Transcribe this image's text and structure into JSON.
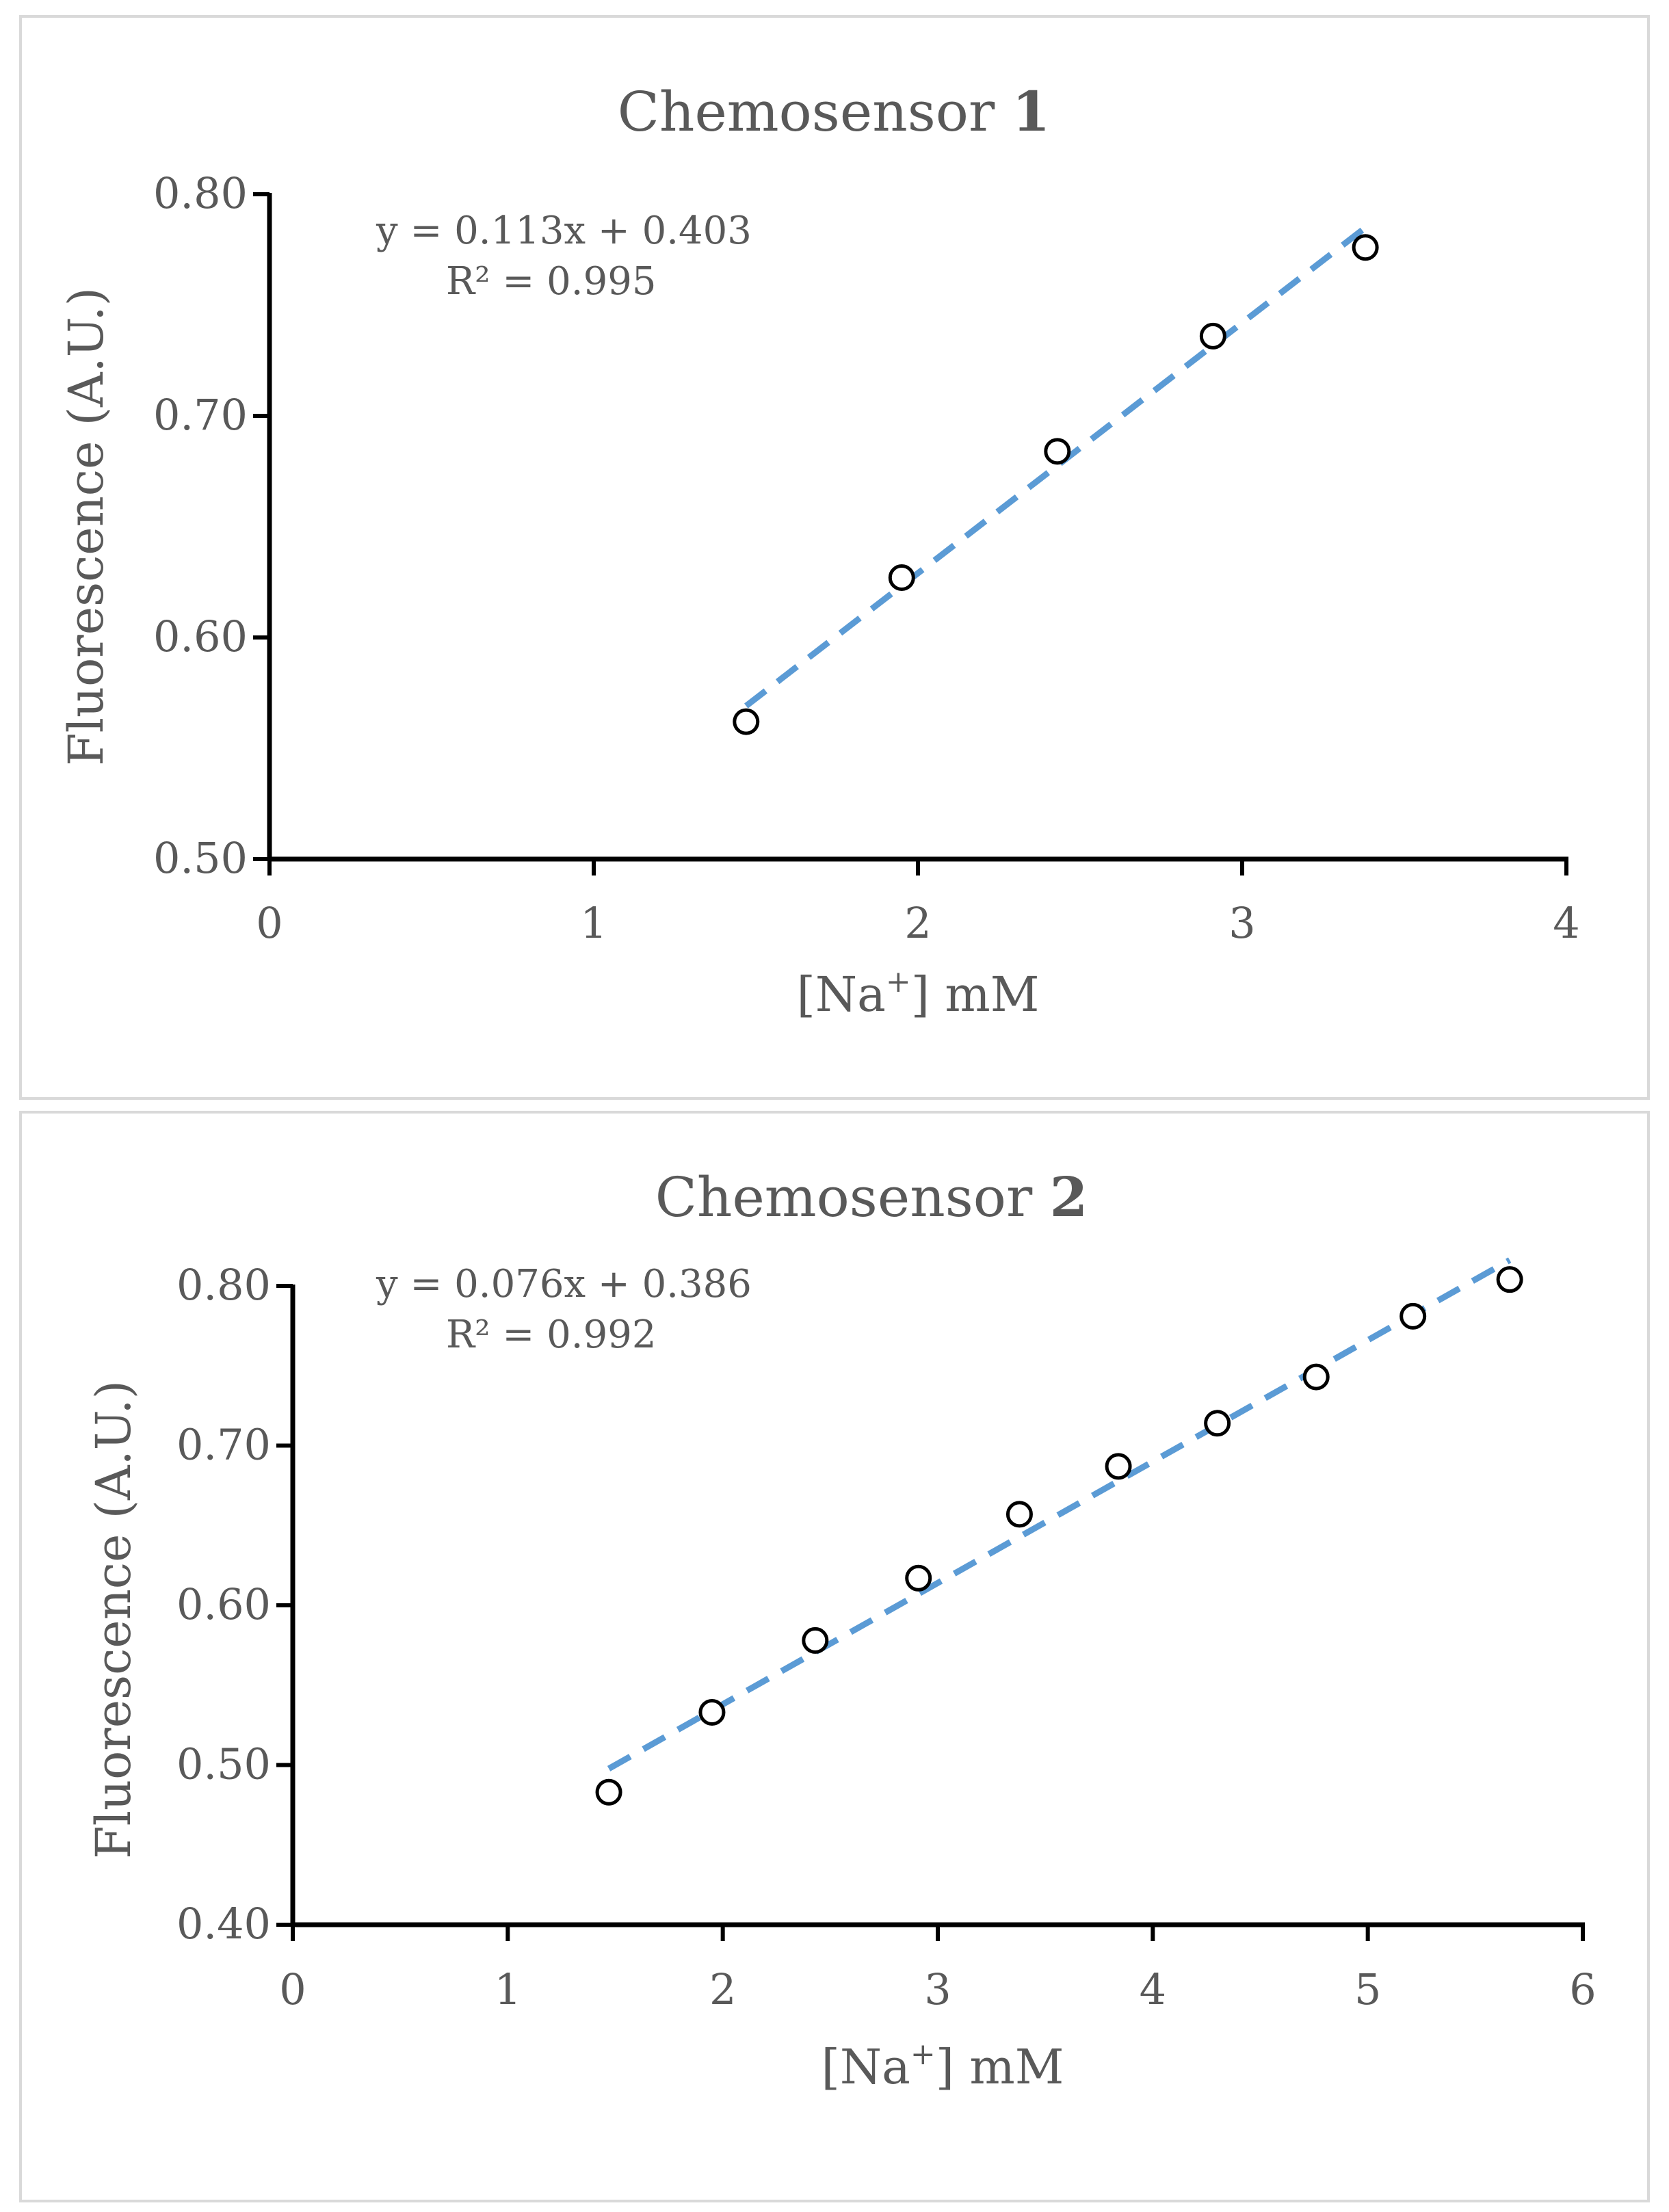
{
  "chart_data": [
    {
      "type": "scatter",
      "title": "Chemosensor 1",
      "title_prefix": "Chemosensor",
      "title_number": "1",
      "xlabel": "[Na+] mM",
      "ylabel": "Fluorescence (A.U.)",
      "xlim": [
        0,
        4
      ],
      "ylim": [
        0.5,
        0.8
      ],
      "x_ticks": [
        0,
        1,
        2,
        3,
        4
      ],
      "y_ticks": [
        0.5,
        0.6,
        0.7,
        0.8
      ],
      "x_tick_labels": [
        "0",
        "1",
        "2",
        "3",
        "4"
      ],
      "y_tick_labels": [
        "0.50",
        "0.60",
        "0.70",
        "0.80"
      ],
      "grid": false,
      "series": [
        {
          "name": "data",
          "marker": "open-circle",
          "x": [
            1.47,
            1.95,
            2.43,
            2.91,
            3.38
          ],
          "y": [
            0.562,
            0.627,
            0.684,
            0.736,
            0.776
          ]
        }
      ],
      "trendline": {
        "type": "linear",
        "slope": 0.113,
        "intercept": 0.403,
        "x_range": [
          1.47,
          3.38
        ],
        "color": "#5b9bd5",
        "style": "dashed"
      },
      "equation_text": "y = 0.113x + 0.403",
      "r2_text": "R² = 0.995"
    },
    {
      "type": "scatter",
      "title": "Chemosensor 2",
      "title_prefix": "Chemosensor",
      "title_number": "2",
      "xlabel": "[Na+] mM",
      "ylabel": "Fluorescence (A.U.)",
      "xlim": [
        0,
        6
      ],
      "ylim": [
        0.4,
        0.8
      ],
      "x_ticks": [
        0,
        1,
        2,
        3,
        4,
        5,
        6
      ],
      "y_ticks": [
        0.4,
        0.5,
        0.6,
        0.7,
        0.8
      ],
      "x_tick_labels": [
        "0",
        "1",
        "2",
        "3",
        "4",
        "5",
        "6"
      ],
      "y_tick_labels": [
        "0.40",
        "0.50",
        "0.60",
        "0.70",
        "0.80"
      ],
      "grid": false,
      "series": [
        {
          "name": "data",
          "marker": "open-circle",
          "x": [
            1.47,
            1.95,
            2.43,
            2.91,
            3.38,
            3.84,
            4.3,
            4.76,
            5.21,
            5.66
          ],
          "y": [
            0.483,
            0.533,
            0.578,
            0.617,
            0.657,
            0.687,
            0.714,
            0.743,
            0.781,
            0.804
          ]
        }
      ],
      "trendline": {
        "type": "linear",
        "slope": 0.076,
        "intercept": 0.386,
        "x_range": [
          1.47,
          5.66
        ],
        "color": "#5b9bd5",
        "style": "dashed"
      },
      "equation_text": "y = 0.076x + 0.386",
      "r2_text": "R² = 0.992"
    }
  ]
}
